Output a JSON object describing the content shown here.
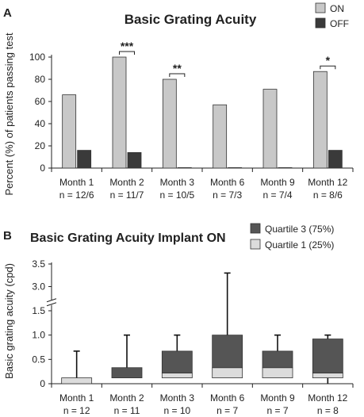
{
  "chart_data": [
    {
      "panel_label": "A",
      "type": "bar",
      "title": "Basic Grating Acuity",
      "ylabel": "Percent (%) of patients passing test",
      "xlabel": "",
      "ylim": [
        0,
        100
      ],
      "yticks": [
        0,
        20,
        40,
        60,
        80,
        100
      ],
      "grid": false,
      "legend_position": "top-right",
      "categories": [
        "Month 1",
        "Month 2",
        "Month 3",
        "Month 6",
        "Month 9",
        "Month 12"
      ],
      "sample_sizes": [
        "n = 12/6",
        "n = 11/7",
        "n = 10/5",
        "n = 7/3",
        "n = 7/4",
        "n = 8/6"
      ],
      "series": [
        {
          "name": "ON",
          "color": "#c8c8c8",
          "values": [
            66,
            100,
            80,
            57,
            71,
            87
          ]
        },
        {
          "name": "OFF",
          "color": "#3a3a3a",
          "values": [
            16,
            14,
            0.4,
            0.4,
            0.4,
            16
          ]
        }
      ],
      "significance": [
        {
          "category": "Month 2",
          "label": "***"
        },
        {
          "category": "Month 3",
          "label": "**"
        },
        {
          "category": "Month 12",
          "label": "*"
        }
      ]
    },
    {
      "panel_label": "B",
      "type": "box",
      "title": "Basic Grating Acuity Implant ON",
      "ylabel": "Basic grating acuity (cpd)",
      "xlabel": "",
      "yticks_lower": [
        0,
        0.5,
        1.0,
        1.5
      ],
      "yticks_upper": [
        3.0,
        3.5
      ],
      "ytick_labels_lower": [
        "0",
        "0.5",
        "1.0",
        "1.5"
      ],
      "ytick_labels_upper": [
        "3.0",
        "3.5"
      ],
      "axis_break": true,
      "grid": false,
      "legend_position": "top-right",
      "categories": [
        "Month 1",
        "Month 2",
        "Month 3",
        "Month 6",
        "Month 9",
        "Month 12"
      ],
      "sample_sizes": [
        "n = 12",
        "n = 11",
        "n = 10",
        "n = 7",
        "n = 7",
        "n = 8"
      ],
      "series": [
        {
          "name": "Quartile 3 (75%)",
          "color": "#555555"
        },
        {
          "name": "Quartile 1 (25%)",
          "color": "#dcdcdc"
        }
      ],
      "boxes": [
        {
          "category": "Month 1",
          "min": 0,
          "q1": 0,
          "median": 0.12,
          "q3": 0.12,
          "max": 0.67
        },
        {
          "category": "Month 2",
          "min": 0.12,
          "q1": 0.12,
          "median": 0.12,
          "q3": 0.33,
          "max": 1.0
        },
        {
          "category": "Month 3",
          "min": 0.12,
          "q1": 0.12,
          "median": 0.22,
          "q3": 0.67,
          "max": 1.0
        },
        {
          "category": "Month 6",
          "min": 0.12,
          "q1": 0.12,
          "median": 0.33,
          "q3": 1.0,
          "max": 3.3
        },
        {
          "category": "Month 9",
          "min": 0.12,
          "q1": 0.12,
          "median": 0.33,
          "q3": 0.67,
          "max": 1.0
        },
        {
          "category": "Month 12",
          "min": 0,
          "q1": 0.12,
          "median": 0.22,
          "q3": 0.92,
          "max": 1.0
        }
      ]
    }
  ]
}
